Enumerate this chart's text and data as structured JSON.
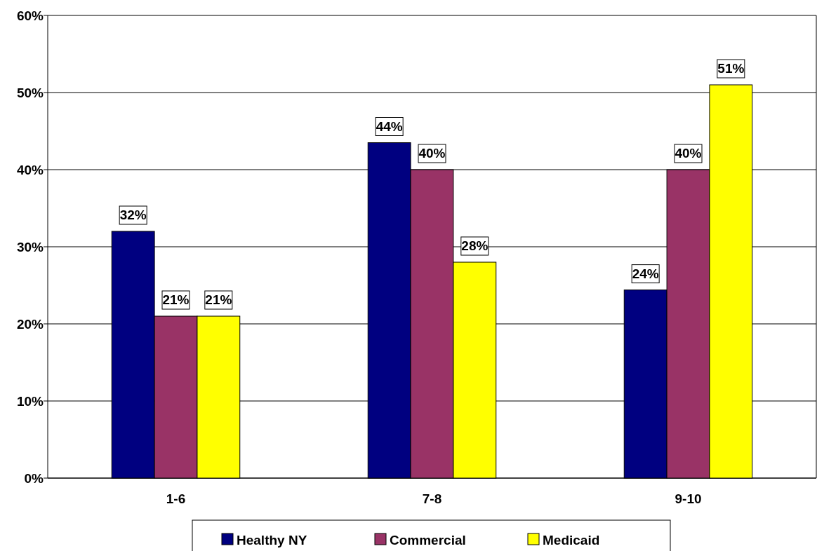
{
  "chart_data": {
    "type": "bar",
    "categories": [
      "1-6",
      "7-8",
      "9-10"
    ],
    "series": [
      {
        "name": "Healthy NY",
        "color": "#000080",
        "values": [
          32,
          43.5,
          24.4
        ],
        "value_labels": [
          "32%",
          "44%",
          "24%"
        ]
      },
      {
        "name": "Commercial",
        "color": "#993366",
        "values": [
          21,
          40,
          40
        ],
        "value_labels": [
          "21%",
          "40%",
          "40%"
        ]
      },
      {
        "name": "Medicaid",
        "color": "#ffff00",
        "values": [
          21,
          28,
          51
        ],
        "value_labels": [
          "21%",
          "28%",
          "51%"
        ]
      }
    ],
    "ylim": [
      0,
      60
    ],
    "yticks": [
      {
        "value": 0,
        "label": "0%"
      },
      {
        "value": 10,
        "label": "10%"
      },
      {
        "value": 20,
        "label": "20%"
      },
      {
        "value": 30,
        "label": "30%"
      },
      {
        "value": 40,
        "label": "40%"
      },
      {
        "value": 50,
        "label": "50%"
      },
      {
        "value": 60,
        "label": "60%"
      }
    ],
    "grid": "y",
    "legend": "bottom"
  }
}
